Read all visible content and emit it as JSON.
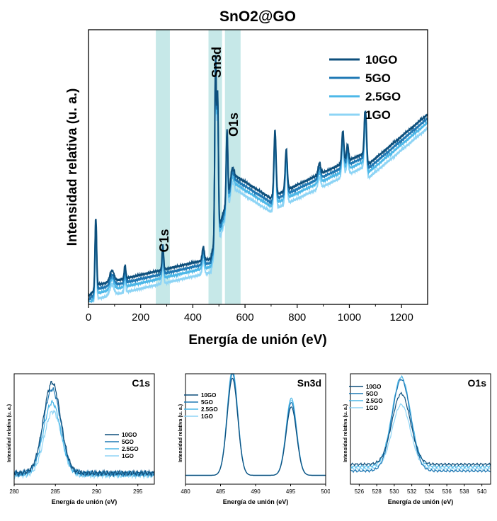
{
  "colors": {
    "10GO": "#0d4f7c",
    "5GO": "#1e78b4",
    "2.5GO": "#4db8e8",
    "1GO": "#8dd4f5",
    "highlight": "#b3e0e0"
  },
  "main": {
    "title": "SnO2@GO",
    "xlabel": "Energía de unión (eV)",
    "ylabel": "Intensidad relativa (u. a.)",
    "xticks": [
      "0",
      "200",
      "400",
      "600",
      "800",
      "1000",
      "1200"
    ],
    "legend": [
      "10GO",
      "5GO",
      "2.5GO",
      "1GO"
    ],
    "regions": [
      {
        "label": "C1s",
        "from": 258,
        "to": 312
      },
      {
        "label": "Sn3d",
        "from": 460,
        "to": 512
      },
      {
        "label": "O1s",
        "from": 523,
        "to": 583
      }
    ]
  },
  "subplots": {
    "c1s": {
      "title": "C1s",
      "xlabel": "Energía de unión (eV)",
      "ylabel": "Intensidad relativa (u. a.)",
      "xticks": [
        "280",
        "285",
        "290",
        "295"
      ],
      "legend": [
        "10GO",
        "5GO",
        "2.5GO",
        "1GO"
      ]
    },
    "sn3d": {
      "title": "Sn3d",
      "xlabel": "Energía de unión (eV)",
      "ylabel": "Intensidad relativa (u. a.)",
      "xticks": [
        "480",
        "485",
        "490",
        "495",
        "500"
      ],
      "legend": [
        "10GO",
        "5GO",
        "2.5GO",
        "1GO"
      ]
    },
    "o1s": {
      "title": "O1s",
      "xlabel": "Energía de unión (eV)",
      "ylabel": "Intensidad relativa (u. a.)",
      "xticks": [
        "526",
        "528",
        "530",
        "532",
        "534",
        "536",
        "538",
        "540"
      ],
      "legend": [
        "10GO",
        "5GO",
        "2.5GO",
        "1GO"
      ]
    }
  },
  "chart_data": [
    {
      "type": "line",
      "title": "SnO2@GO",
      "xlabel": "Energía de unión (eV)",
      "ylabel": "Intensidad relativa (u. a.)",
      "xlim": [
        0,
        1300
      ],
      "legend_position": "top-right",
      "annotations": [
        "C1s",
        "Sn3d",
        "O1s"
      ],
      "peaks_eV": [
        28,
        140,
        285,
        487,
        495,
        531,
        715,
        758,
        885,
        975,
        993,
        1062
      ],
      "series": [
        {
          "name": "10GO",
          "x": [
            0,
            28,
            40,
            100,
            200,
            285,
            400,
            480,
            487,
            495,
            531,
            560,
            700,
            715,
            758,
            885,
            975,
            1062,
            1150,
            1230,
            1300
          ],
          "y": [
            0.05,
            0.35,
            0.09,
            0.13,
            0.12,
            0.21,
            0.17,
            0.33,
            0.97,
            0.83,
            0.68,
            0.47,
            0.4,
            0.66,
            0.56,
            0.45,
            0.54,
            0.71,
            0.62,
            0.68,
            0.76
          ]
        },
        {
          "name": "5GO",
          "x": [
            0,
            28,
            40,
            100,
            200,
            285,
            400,
            480,
            487,
            495,
            531,
            560,
            700,
            715,
            758,
            885,
            975,
            1062,
            1150,
            1230,
            1300
          ],
          "y": [
            0.05,
            0.33,
            0.08,
            0.12,
            0.11,
            0.2,
            0.16,
            0.31,
            0.95,
            0.81,
            0.66,
            0.45,
            0.38,
            0.64,
            0.54,
            0.43,
            0.52,
            0.69,
            0.6,
            0.66,
            0.74
          ]
        },
        {
          "name": "2.5GO",
          "x": [
            0,
            28,
            40,
            100,
            200,
            285,
            400,
            480,
            487,
            495,
            531,
            560,
            700,
            715,
            758,
            885,
            975,
            1062,
            1150,
            1230,
            1300
          ],
          "y": [
            0.04,
            0.31,
            0.08,
            0.11,
            0.1,
            0.19,
            0.15,
            0.29,
            0.93,
            0.79,
            0.64,
            0.43,
            0.36,
            0.62,
            0.52,
            0.41,
            0.5,
            0.67,
            0.58,
            0.64,
            0.72
          ]
        },
        {
          "name": "1GO",
          "x": [
            0,
            28,
            40,
            100,
            200,
            285,
            400,
            480,
            487,
            495,
            531,
            560,
            700,
            715,
            758,
            885,
            975,
            1062,
            1150,
            1230,
            1300
          ],
          "y": [
            0.03,
            0.29,
            0.07,
            0.1,
            0.09,
            0.17,
            0.14,
            0.27,
            0.9,
            0.76,
            0.61,
            0.4,
            0.33,
            0.59,
            0.49,
            0.38,
            0.47,
            0.64,
            0.55,
            0.61,
            0.69
          ]
        }
      ]
    },
    {
      "type": "line",
      "title": "C1s",
      "xlim": [
        280,
        297
      ],
      "peak_eV": 284.6,
      "series": [
        {
          "name": "10GO",
          "peak": 0.92,
          "base": 0.1
        },
        {
          "name": "5GO",
          "peak": 0.86,
          "base": 0.1
        },
        {
          "name": "2.5GO",
          "peak": 0.74,
          "base": 0.09
        },
        {
          "name": "1GO",
          "peak": 0.66,
          "base": 0.08
        }
      ]
    },
    {
      "type": "line",
      "title": "Sn3d",
      "xlim": [
        480,
        500
      ],
      "peaks_eV": [
        486.7,
        495.1
      ],
      "series": [
        {
          "name": "10GO",
          "peak1": 0.88,
          "peak2": 0.62
        },
        {
          "name": "5GO",
          "peak1": 0.92,
          "peak2": 0.66
        },
        {
          "name": "2.5GO",
          "peak1": 0.96,
          "peak2": 0.7
        },
        {
          "name": "1GO",
          "peak1": 0.94,
          "peak2": 0.68
        }
      ]
    },
    {
      "type": "line",
      "title": "O1s",
      "xlim": [
        525,
        541
      ],
      "peak_eV": 530.8,
      "series": [
        {
          "name": "10GO",
          "peak": 0.82,
          "base": 0.18
        },
        {
          "name": "5GO",
          "peak": 0.95,
          "base": 0.12
        },
        {
          "name": "2.5GO",
          "peak": 0.97,
          "base": 0.16
        },
        {
          "name": "1GO",
          "peak": 0.72,
          "base": 0.14
        }
      ]
    }
  ]
}
